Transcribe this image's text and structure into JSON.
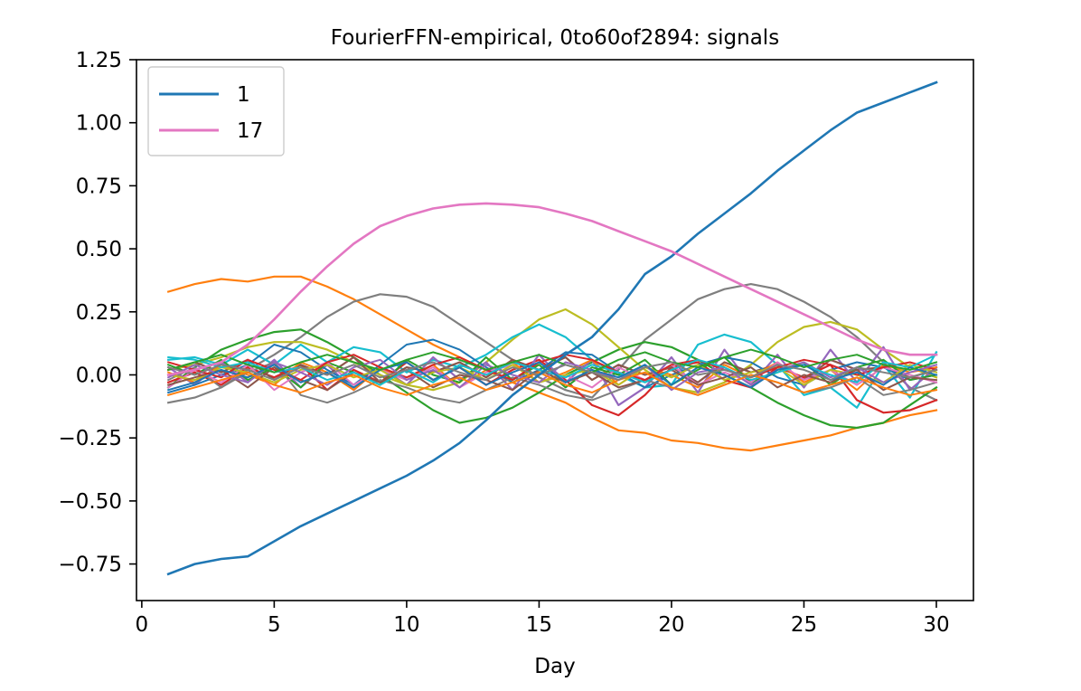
{
  "chart_data": {
    "type": "line",
    "title": "FourierFFN-empirical, 0to60of2894: signals",
    "xlabel": "Day",
    "ylabel": "",
    "xlim": [
      -0.2,
      31.4
    ],
    "ylim": [
      -0.895,
      1.25
    ],
    "xticks": [
      0,
      5,
      10,
      15,
      20,
      25,
      30
    ],
    "xtick_labels": [
      "0",
      "5",
      "10",
      "15",
      "20",
      "25",
      "30"
    ],
    "yticks": [
      -0.75,
      -0.5,
      -0.25,
      0.0,
      0.25,
      0.5,
      0.75,
      1.0,
      1.25
    ],
    "ytick_labels": [
      "−0.75",
      "−0.50",
      "−0.25",
      "0.00",
      "0.25",
      "0.50",
      "0.75",
      "1.00",
      "1.25"
    ],
    "grid": false,
    "legend_position": "top-left",
    "x": [
      1,
      2,
      3,
      4,
      5,
      6,
      7,
      8,
      9,
      10,
      11,
      12,
      13,
      14,
      15,
      16,
      17,
      18,
      19,
      20,
      21,
      22,
      23,
      24,
      25,
      26,
      27,
      28,
      29,
      30
    ],
    "series": [
      {
        "name": "1",
        "color": "#1f77b4",
        "legend": true,
        "width": 2.6,
        "values": [
          -0.79,
          -0.75,
          -0.73,
          -0.72,
          -0.66,
          -0.6,
          -0.55,
          -0.5,
          -0.45,
          -0.4,
          -0.34,
          -0.27,
          -0.18,
          -0.08,
          0.0,
          0.08,
          0.15,
          0.26,
          0.4,
          0.47,
          0.56,
          0.64,
          0.72,
          0.81,
          0.89,
          0.97,
          1.04,
          1.08,
          1.12,
          1.16
        ]
      },
      {
        "name": "17",
        "color": "#e377c2",
        "legend": true,
        "width": 2.6,
        "values": [
          0.0,
          0.02,
          0.05,
          0.12,
          0.22,
          0.33,
          0.43,
          0.52,
          0.59,
          0.63,
          0.66,
          0.675,
          0.68,
          0.675,
          0.665,
          0.64,
          0.61,
          0.57,
          0.53,
          0.49,
          0.44,
          0.39,
          0.34,
          0.29,
          0.24,
          0.19,
          0.14,
          0.1,
          0.08,
          0.08
        ]
      },
      {
        "color": "#ff7f0e",
        "width": 2.2,
        "values": [
          0.33,
          0.36,
          0.38,
          0.37,
          0.39,
          0.39,
          0.35,
          0.3,
          0.24,
          0.18,
          0.12,
          0.07,
          0.02,
          -0.03,
          -0.07,
          -0.11,
          -0.17,
          -0.22,
          -0.23,
          -0.26,
          -0.27,
          -0.29,
          -0.3,
          -0.28,
          -0.26,
          -0.24,
          -0.21,
          -0.19,
          -0.16,
          -0.14
        ]
      },
      {
        "color": "#7f7f7f",
        "width": 2.2,
        "values": [
          -0.11,
          -0.09,
          -0.05,
          0.02,
          0.08,
          0.15,
          0.23,
          0.29,
          0.32,
          0.31,
          0.27,
          0.2,
          0.13,
          0.06,
          -0.01,
          -0.06,
          -0.09,
          0.02,
          0.14,
          0.22,
          0.3,
          0.34,
          0.36,
          0.34,
          0.29,
          0.23,
          0.15,
          0.05,
          -0.05,
          -0.1
        ]
      },
      {
        "color": "#2ca02c",
        "width": 2.2,
        "values": [
          -0.05,
          0.03,
          0.1,
          0.14,
          0.17,
          0.18,
          0.13,
          0.07,
          0.0,
          -0.07,
          -0.14,
          -0.19,
          -0.17,
          -0.13,
          -0.07,
          0.0,
          0.05,
          0.1,
          0.13,
          0.11,
          0.06,
          0.0,
          -0.05,
          -0.11,
          -0.16,
          -0.2,
          -0.21,
          -0.19,
          -0.12,
          -0.05
        ]
      },
      {
        "color": "#bcbd22",
        "width": 2.2,
        "values": [
          0.02,
          0.04,
          0.07,
          0.11,
          0.13,
          0.13,
          0.1,
          0.05,
          0.0,
          -0.04,
          -0.06,
          -0.03,
          0.05,
          0.14,
          0.22,
          0.26,
          0.2,
          0.11,
          0.02,
          -0.05,
          -0.07,
          -0.03,
          0.04,
          0.13,
          0.19,
          0.21,
          0.18,
          0.1,
          0.03,
          -0.01
        ]
      },
      {
        "color": "#17becf",
        "width": 2.2,
        "values": [
          0.06,
          0.07,
          0.04,
          0.1,
          0.04,
          0.12,
          0.05,
          0.11,
          0.09,
          0.01,
          0.06,
          0.03,
          0.08,
          0.15,
          0.2,
          0.15,
          0.06,
          0.0,
          -0.05,
          -0.04,
          0.12,
          0.16,
          0.13,
          0.04,
          -0.08,
          -0.05,
          -0.13,
          0.04,
          -0.09,
          0.09
        ]
      },
      {
        "color": "#d62728",
        "width": 2.2,
        "values": [
          -0.03,
          0.01,
          -0.04,
          0.03,
          -0.01,
          0.04,
          -0.06,
          0.02,
          -0.03,
          0.05,
          -0.02,
          0.03,
          -0.04,
          0.02,
          0.06,
          -0.02,
          -0.12,
          -0.16,
          -0.08,
          0.03,
          0.05,
          -0.02,
          -0.05,
          0.03,
          -0.01,
          0.04,
          -0.1,
          -0.15,
          -0.14,
          -0.1
        ]
      },
      {
        "color": "#9467bd",
        "width": 2.2,
        "values": [
          0.03,
          -0.04,
          0.05,
          -0.03,
          0.06,
          -0.05,
          0.04,
          -0.06,
          0.03,
          -0.04,
          0.07,
          -0.02,
          0.05,
          -0.06,
          0.08,
          -0.03,
          0.06,
          -0.12,
          -0.05,
          0.07,
          -0.07,
          0.1,
          -0.04,
          0.08,
          -0.05,
          0.1,
          -0.03,
          0.11,
          -0.06,
          0.03
        ]
      },
      {
        "color": "#8c564b",
        "width": 2.2,
        "values": [
          0.02,
          0.05,
          0.01,
          0.06,
          -0.02,
          0.04,
          0.0,
          0.07,
          -0.03,
          0.03,
          0.01,
          0.05,
          -0.01,
          0.06,
          0.02,
          0.07,
          -0.02,
          0.04,
          0.0,
          0.03,
          -0.03,
          0.05,
          0.01,
          0.04,
          -0.02,
          0.06,
          0.02,
          0.03,
          -0.01,
          0.02
        ]
      },
      {
        "color": "#1f77b4",
        "width": 2.0,
        "values": [
          -0.07,
          -0.04,
          0.0,
          0.04,
          0.12,
          0.09,
          0.02,
          -0.04,
          0.04,
          0.12,
          0.14,
          0.1,
          0.03,
          -0.03,
          0.02,
          0.09,
          0.08,
          0.01,
          -0.05,
          0.0,
          0.04,
          0.07,
          0.05,
          -0.01,
          -0.04,
          0.02,
          0.05,
          0.03,
          -0.02,
          0.0
        ]
      },
      {
        "color": "#ff7f0e",
        "width": 2.0,
        "values": [
          0.01,
          -0.03,
          0.04,
          0.0,
          -0.04,
          0.05,
          0.01,
          -0.06,
          0.03,
          -0.02,
          0.04,
          -0.05,
          0.02,
          0.05,
          -0.03,
          0.01,
          0.06,
          -0.04,
          0.03,
          0.0,
          -0.05,
          0.04,
          -0.01,
          0.05,
          -0.03,
          0.02,
          -0.06,
          0.04,
          0.01,
          0.03
        ]
      },
      {
        "color": "#2ca02c",
        "width": 2.0,
        "values": [
          0.04,
          0.0,
          0.06,
          -0.02,
          0.03,
          -0.05,
          0.05,
          0.01,
          -0.04,
          0.06,
          0.0,
          -0.03,
          0.07,
          -0.02,
          0.04,
          -0.05,
          0.03,
          0.0,
          0.06,
          -0.04,
          0.02,
          0.07,
          -0.03,
          0.01,
          0.05,
          -0.04,
          0.03,
          0.06,
          -0.02,
          0.0
        ]
      },
      {
        "color": "#7f7f7f",
        "width": 2.0,
        "values": [
          -0.02,
          0.03,
          -0.05,
          0.01,
          0.05,
          -0.08,
          -0.11,
          -0.07,
          -0.02,
          -0.05,
          -0.09,
          -0.11,
          -0.06,
          -0.01,
          -0.04,
          -0.08,
          -0.1,
          -0.06,
          -0.02,
          -0.05,
          -0.08,
          -0.04,
          0.0,
          -0.03,
          -0.07,
          -0.05,
          -0.01,
          -0.08,
          -0.06,
          -0.03
        ]
      },
      {
        "color": "#e377c2",
        "width": 2.0,
        "values": [
          -0.05,
          0.02,
          -0.03,
          0.04,
          -0.06,
          0.01,
          0.05,
          -0.04,
          0.02,
          -0.02,
          0.03,
          -0.05,
          0.01,
          0.04,
          -0.03,
          0.0,
          -0.05,
          0.03,
          -0.02,
          0.04,
          -0.04,
          0.01,
          -0.03,
          0.05,
          -0.02,
          0.02,
          -0.04,
          0.03,
          0.0,
          -0.03
        ]
      },
      {
        "color": "#bcbd22",
        "width": 2.0,
        "values": [
          0.0,
          -0.02,
          0.03,
          0.01,
          -0.03,
          0.02,
          0.04,
          -0.01,
          0.02,
          -0.04,
          0.01,
          0.03,
          -0.02,
          0.04,
          -0.03,
          0.0,
          0.02,
          -0.04,
          0.03,
          -0.01,
          0.04,
          -0.02,
          0.01,
          0.03,
          -0.04,
          0.02,
          0.0,
          -0.03,
          0.04,
          0.01
        ]
      },
      {
        "color": "#8c564b",
        "width": 2.0,
        "values": [
          -0.04,
          -0.01,
          0.02,
          -0.05,
          0.03,
          -0.02,
          -0.06,
          0.01,
          -0.03,
          0.02,
          -0.05,
          0.0,
          -0.02,
          -0.06,
          0.02,
          -0.03,
          0.01,
          -0.05,
          -0.02,
          0.02,
          -0.04,
          -0.01,
          0.03,
          -0.05,
          0.0,
          -0.03,
          0.02,
          -0.06,
          -0.01,
          -0.02
        ]
      },
      {
        "color": "#d62728",
        "width": 2.0,
        "values": [
          0.05,
          0.02,
          -0.01,
          0.06,
          0.02,
          -0.02,
          0.05,
          0.08,
          0.03,
          -0.01,
          0.04,
          0.07,
          0.02,
          -0.02,
          0.05,
          0.08,
          0.06,
          0.01,
          -0.02,
          0.04,
          0.06,
          0.02,
          -0.01,
          0.03,
          0.06,
          0.04,
          0.0,
          0.03,
          0.05,
          0.02
        ]
      },
      {
        "color": "#9467bd",
        "width": 2.0,
        "values": [
          -0.01,
          0.04,
          0.0,
          -0.03,
          0.05,
          0.01,
          -0.04,
          0.03,
          0.06,
          -0.02,
          0.02,
          -0.05,
          0.04,
          0.0,
          -0.03,
          0.05,
          0.02,
          -0.02,
          0.04,
          -0.06,
          0.01,
          0.03,
          -0.04,
          0.02,
          0.05,
          -0.01,
          0.03,
          -0.03,
          0.01,
          0.04
        ]
      },
      {
        "color": "#17becf",
        "width": 2.0,
        "values": [
          0.07,
          0.06,
          0.03,
          0.05,
          0.01,
          0.03,
          -0.02,
          0.01,
          -0.04,
          0.02,
          -0.03,
          0.04,
          0.0,
          0.05,
          0.02,
          -0.01,
          0.04,
          0.01,
          -0.03,
          0.02,
          0.06,
          0.03,
          -0.02,
          0.01,
          0.04,
          0.0,
          -0.03,
          0.05,
          0.03,
          0.08
        ]
      },
      {
        "color": "#1f77b4",
        "width": 2.0,
        "values": [
          -0.06,
          -0.03,
          0.02,
          -0.01,
          0.04,
          -0.03,
          0.01,
          -0.05,
          0.02,
          0.05,
          -0.02,
          0.03,
          -0.04,
          0.01,
          0.05,
          -0.03,
          0.02,
          -0.01,
          0.04,
          -0.04,
          0.03,
          0.0,
          -0.05,
          0.02,
          0.04,
          -0.02,
          0.01,
          -0.04,
          0.03,
          0.0
        ]
      },
      {
        "color": "#2ca02c",
        "width": 2.0,
        "values": [
          0.02,
          0.05,
          0.08,
          0.04,
          0.01,
          0.05,
          0.08,
          0.05,
          0.02,
          0.06,
          0.09,
          0.06,
          0.02,
          0.05,
          0.08,
          0.04,
          0.01,
          0.06,
          0.09,
          0.05,
          0.03,
          0.07,
          0.1,
          0.07,
          0.03,
          0.06,
          0.08,
          0.04,
          0.02,
          0.05
        ]
      },
      {
        "color": "#ff7f0e",
        "width": 2.0,
        "values": [
          -0.08,
          -0.05,
          -0.02,
          0.01,
          -0.04,
          -0.07,
          -0.03,
          0.0,
          -0.05,
          -0.08,
          -0.04,
          -0.01,
          -0.06,
          -0.03,
          0.01,
          -0.04,
          -0.07,
          -0.02,
          0.01,
          -0.05,
          -0.08,
          -0.04,
          0.0,
          -0.03,
          -0.07,
          -0.04,
          -0.01,
          -0.05,
          -0.08,
          -0.06
        ]
      },
      {
        "color": "#7f7f7f",
        "width": 2.0,
        "values": [
          0.03,
          0.0,
          0.04,
          0.02,
          -0.02,
          0.03,
          0.0,
          0.04,
          -0.01,
          0.02,
          0.05,
          0.01,
          -0.02,
          0.03,
          0.0,
          0.04,
          0.01,
          -0.02,
          0.03,
          0.05,
          0.0,
          0.02,
          -0.01,
          0.04,
          0.02,
          -0.02,
          0.03,
          0.01,
          -0.01,
          0.02
        ]
      }
    ]
  }
}
